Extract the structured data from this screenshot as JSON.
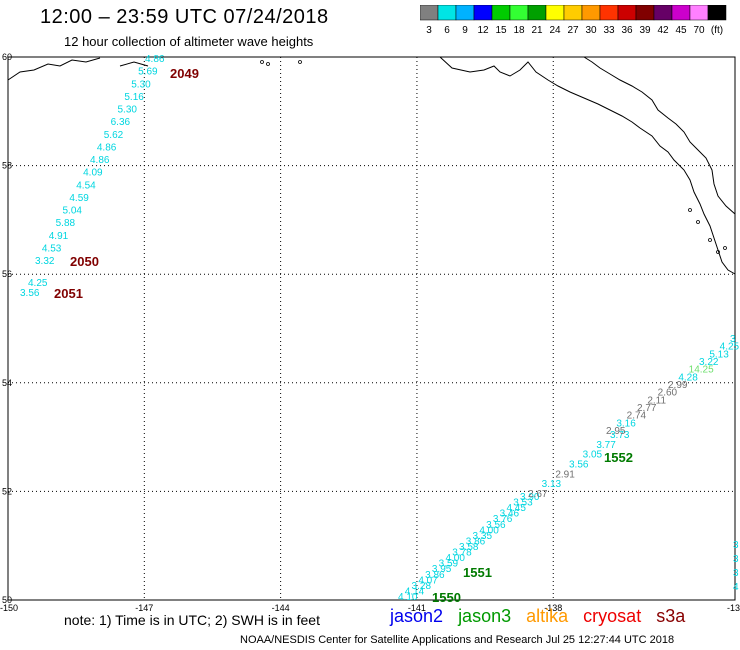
{
  "header": {
    "title": "12:00 – 23:59 UTC 07/24/2018",
    "subtitle": "12 hour collection of altimeter wave heights"
  },
  "colorbar": {
    "labels": [
      "3",
      "6",
      "9",
      "12",
      "15",
      "18",
      "21",
      "24",
      "27",
      "30",
      "33",
      "36",
      "39",
      "42",
      "45",
      "70",
      "(ft)"
    ],
    "colors": [
      "#808080",
      "#00e5e5",
      "#00b2ff",
      "#0000ff",
      "#00cc00",
      "#33ff33",
      "#00a000",
      "#ffff00",
      "#ffcc00",
      "#ff9900",
      "#ff3300",
      "#cc0000",
      "#800000",
      "#660066",
      "#cc00cc",
      "#ff80ff",
      "#000000"
    ]
  },
  "axes": {
    "lat_labels": [
      "60",
      "58",
      "56",
      "54",
      "52",
      "50"
    ],
    "lon_labels": [
      "-150",
      "-147",
      "-144",
      "-141",
      "-138",
      "-13"
    ]
  },
  "passes": [
    {
      "label": "2049",
      "color": "#800000",
      "values": [
        "4.86",
        "5.69",
        "5.30",
        "5.16",
        "5.30",
        "6.36",
        "5.62",
        "4.86",
        "4.86",
        "4.09",
        "4.54",
        "4.59",
        "5.04",
        "5.88",
        "4.91",
        "4.53",
        "3.32"
      ]
    },
    {
      "label": "2050",
      "color": "#800000"
    },
    {
      "label": "2051",
      "color": "#800000",
      "values": [
        "4.25",
        "3.56"
      ]
    },
    {
      "label": "1550",
      "color": "#007a00",
      "values": [
        "4.10",
        "4.14",
        "3.28",
        "4.07",
        "3.86",
        "3.95",
        "3.59",
        "4.00",
        "3.78",
        "3.58",
        "3.86",
        "3.35",
        "4.00",
        "3.56",
        "3.76",
        "3.46",
        "4.45",
        "3.53",
        "3.90"
      ]
    },
    {
      "label": "1551",
      "color": "#007a00",
      "values": [
        "2.67",
        "3.13",
        "2.91",
        "3.56",
        "3.05",
        "3.77",
        "3.73"
      ]
    },
    {
      "label": "1552",
      "color": "#007a00",
      "values": [
        "2.95",
        "3.16",
        "2.74",
        "2.77",
        "2.11",
        "2.60",
        "2.99",
        "4.28",
        "14.25",
        "3.22",
        "5.13",
        "4.25",
        "3"
      ]
    }
  ],
  "footer": {
    "note": "note: 1) Time is in UTC; 2) SWH is in feet",
    "satellites": [
      {
        "name": "jason2",
        "color": "#0000ee"
      },
      {
        "name": "jason3",
        "color": "#009900"
      },
      {
        "name": "altika",
        "color": "#ff9900"
      },
      {
        "name": "cryosat",
        "color": "#ee0000"
      },
      {
        "name": "s3a",
        "color": "#880000"
      }
    ],
    "credit": "NOAA/NESDIS Center for Satellite Applications and Research    Jul 25 12:27:44 UTC 2018"
  }
}
